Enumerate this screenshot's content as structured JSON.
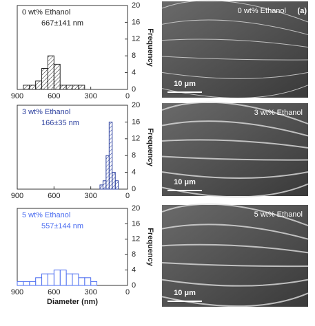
{
  "chart_data": [
    {
      "type": "histogram",
      "annotation": [
        "0 wt% Ethanol",
        "667±141 nm"
      ],
      "color": "#222222",
      "hatch": true,
      "bins": [
        350,
        400,
        450,
        500,
        550,
        600,
        650,
        700,
        750,
        800,
        850
      ],
      "values": [
        1,
        1,
        1,
        1,
        6,
        8,
        5,
        2,
        1,
        1
      ],
      "xlim": [
        900,
        0
      ],
      "xticks": [
        900,
        600,
        300,
        0
      ],
      "ylim": [
        0,
        20
      ],
      "yticks": [
        0,
        4,
        8,
        12,
        16,
        20
      ],
      "ylabel": "Frequency"
    },
    {
      "type": "histogram",
      "annotation": [
        "3 wt% Ethanol",
        "166±35 nm"
      ],
      "color": "#2b3f9e",
      "hatch": true,
      "bins": [
        75,
        100,
        125,
        150,
        175,
        200,
        225
      ],
      "values": [
        2,
        4,
        16,
        8,
        2,
        1
      ],
      "xlim": [
        900,
        0
      ],
      "xticks": [
        900,
        600,
        300,
        0
      ],
      "ylim": [
        0,
        20
      ],
      "yticks": [
        0,
        4,
        8,
        12,
        16,
        20
      ],
      "ylabel": "Frequency"
    },
    {
      "type": "histogram",
      "annotation": [
        "5 wt% Ethanol",
        "557±144 nm"
      ],
      "color": "#4a6cf0",
      "hatch": false,
      "bins": [
        250,
        300,
        350,
        400,
        450,
        500,
        550,
        600,
        650,
        700,
        750,
        800,
        850,
        900
      ],
      "values": [
        1,
        2,
        2,
        3,
        3,
        4,
        4,
        3,
        3,
        2,
        1,
        1,
        1
      ],
      "xlim": [
        900,
        0
      ],
      "xticks": [
        900,
        600,
        300,
        0
      ],
      "ylim": [
        0,
        20
      ],
      "yticks": [
        0,
        4,
        8,
        12,
        16,
        20
      ],
      "ylabel": "Frequency",
      "xlabel": "Diameter (nm)"
    }
  ],
  "micrographs": [
    {
      "label": "0 wt% Ethanol",
      "scale_bar": "10 μm",
      "panel": "(a)"
    },
    {
      "label": "3 wt% Ethanol",
      "scale_bar": "10 μm"
    },
    {
      "label": "5 wt% Ethanol",
      "scale_bar": "10 μm"
    }
  ]
}
